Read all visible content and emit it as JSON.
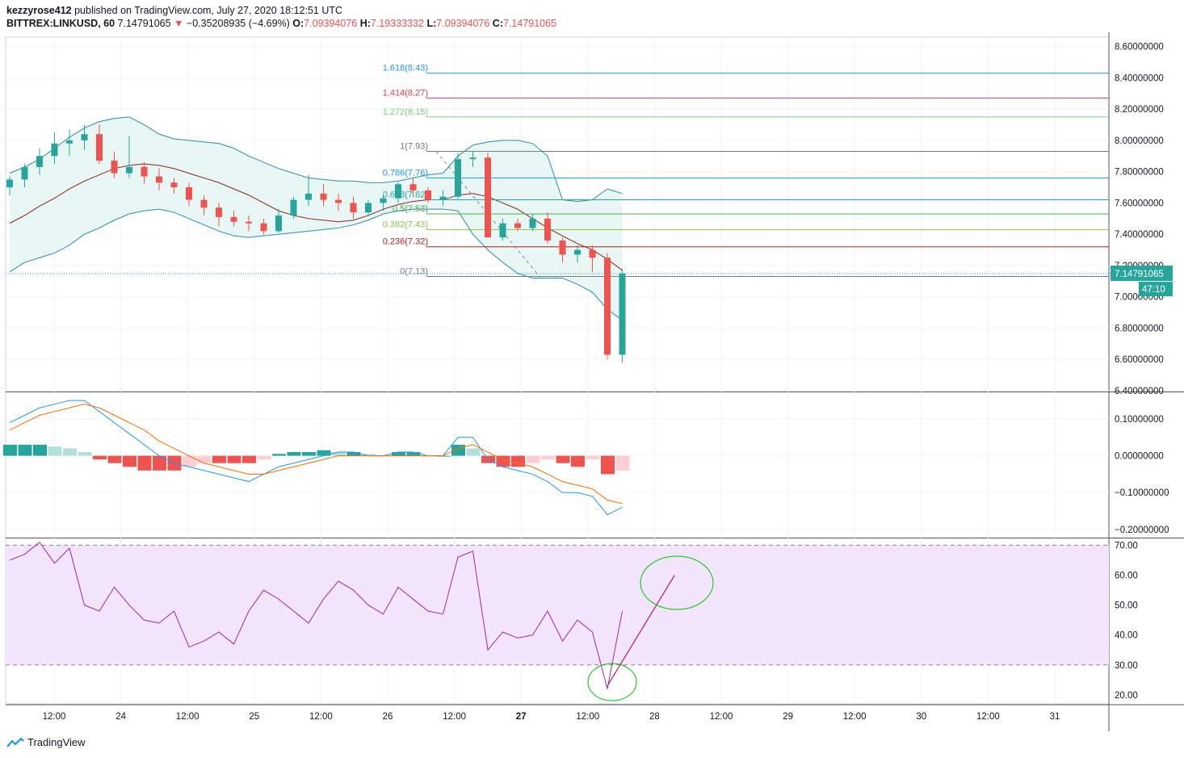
{
  "header": {
    "author": "kezzyrose412",
    "published_text": "published on TradingView.com, July 27, 2020 18:12:51 UTC",
    "symbol": "BITTREX:LINKUSD, 60",
    "last": "7.14791065",
    "down_arrow": "▼",
    "change": "−0.35208935 (−4.69%)",
    "o_label": "O:",
    "o_val": "7.09394076",
    "h_label": "H:",
    "h_val": "7.19333332",
    "l_label": "L:",
    "l_val": "7.09394076",
    "c_label": "C:",
    "c_val": "7.14791065"
  },
  "price_badge": "7.14791065",
  "countdown_badge": "47:10",
  "footer": {
    "brand": "TradingView",
    "logo_icon": "tradingview-logo-icon"
  },
  "colors": {
    "up": "#26a69a",
    "down": "#ef5350",
    "macd": "#2196f3",
    "signal": "#ff6d00",
    "rsi": "#9c27b0",
    "bb_fill": "#e8f6f4",
    "rsi_band": "#f3e5fc",
    "annotation": "#00c400",
    "trendline": "#b71c5a"
  },
  "chart_data": [
    {
      "type": "candlestick",
      "name": "price",
      "y_ticks": [
        "8.60000000",
        "8.40000000",
        "8.20000000",
        "8.00000000",
        "7.80000000",
        "7.60000000",
        "7.40000000",
        "7.20000000",
        "7.00000000",
        "6.80000000",
        "6.60000000",
        "6.40000000"
      ],
      "ylim": [
        6.4,
        8.66
      ],
      "x_ticks": [
        "12:00",
        "24",
        "12:00",
        "25",
        "12:00",
        "26",
        "12:00",
        "27",
        "12:00",
        "28",
        "12:00",
        "29",
        "12:00",
        "30",
        "12:00",
        "31"
      ],
      "fib_levels": [
        {
          "label": "1.618",
          "price": "8.43",
          "value": 8.43,
          "color": "#2196f3"
        },
        {
          "label": "1.414",
          "price": "8.27",
          "value": 8.27,
          "color": "#e53950"
        },
        {
          "label": "1.272",
          "price": "8.15",
          "value": 8.15,
          "color": "#81c784"
        },
        {
          "label": "1",
          "price": "7.93",
          "value": 7.93,
          "color": "#787b86"
        },
        {
          "label": "0.786",
          "price": "7.76",
          "value": 7.76,
          "color": "#2196f3"
        },
        {
          "label": "0.618",
          "price": "7.62",
          "value": 7.62,
          "color": "#26a69a"
        },
        {
          "label": "0.5",
          "price": "7.53",
          "value": 7.53,
          "color": "#4caf50"
        },
        {
          "label": "0.382",
          "price": "7.43",
          "value": 7.43,
          "color": "#8bc34a"
        },
        {
          "label": "0.236",
          "price": "7.32",
          "value": 7.32,
          "color": "#b71c1c"
        },
        {
          "label": "0",
          "price": "7.13",
          "value": 7.13,
          "color": "#787b86"
        }
      ],
      "bollinger": {
        "upper": [
          7.79,
          7.83,
          7.88,
          7.95,
          8.02,
          8.08,
          8.12,
          8.14,
          8.15,
          8.1,
          8.04,
          8.01,
          8.0,
          7.99,
          7.98,
          7.95,
          7.9,
          7.86,
          7.82,
          7.79,
          7.76,
          7.75,
          7.74,
          7.74,
          7.73,
          7.73,
          7.74,
          7.76,
          7.78,
          7.79,
          7.9,
          7.97,
          7.99,
          8.0,
          8.0,
          7.98,
          7.9,
          7.62,
          7.61,
          7.62,
          7.69,
          7.66
        ],
        "middle": [
          7.47,
          7.52,
          7.58,
          7.63,
          7.69,
          7.74,
          7.78,
          7.82,
          7.84,
          7.85,
          7.84,
          7.82,
          7.79,
          7.76,
          7.73,
          7.69,
          7.65,
          7.6,
          7.55,
          7.52,
          7.5,
          7.49,
          7.48,
          7.49,
          7.52,
          7.56,
          7.59,
          7.61,
          7.62,
          7.62,
          7.65,
          7.66,
          7.64,
          7.6,
          7.56,
          7.5,
          7.44,
          7.39,
          7.34,
          7.3,
          7.24,
          7.17
        ],
        "lower": [
          7.16,
          7.22,
          7.25,
          7.28,
          7.33,
          7.4,
          7.44,
          7.49,
          7.53,
          7.55,
          7.56,
          7.54,
          7.5,
          7.46,
          7.42,
          7.39,
          7.38,
          7.39,
          7.4,
          7.41,
          7.42,
          7.43,
          7.44,
          7.46,
          7.49,
          7.53,
          7.55,
          7.56,
          7.56,
          7.56,
          7.55,
          7.4,
          7.3,
          7.22,
          7.15,
          7.12,
          7.12,
          7.12,
          7.08,
          7.03,
          6.92,
          6.85
        ]
      },
      "candles": [
        [
          7.7,
          7.77,
          7.65,
          7.75
        ],
        [
          7.75,
          7.85,
          7.7,
          7.83
        ],
        [
          7.83,
          7.95,
          7.78,
          7.9
        ],
        [
          7.9,
          8.05,
          7.85,
          7.98
        ],
        [
          7.98,
          8.07,
          7.9,
          8.0
        ],
        [
          8.0,
          8.1,
          7.94,
          8.04
        ],
        [
          8.04,
          8.1,
          7.85,
          7.87
        ],
        [
          7.87,
          7.93,
          7.76,
          7.79
        ],
        [
          7.79,
          8.03,
          7.76,
          7.83
        ],
        [
          7.83,
          7.86,
          7.72,
          7.77
        ],
        [
          7.77,
          7.82,
          7.68,
          7.73
        ],
        [
          7.73,
          7.76,
          7.66,
          7.7
        ],
        [
          7.7,
          7.73,
          7.58,
          7.62
        ],
        [
          7.62,
          7.65,
          7.52,
          7.57
        ],
        [
          7.57,
          7.6,
          7.45,
          7.51
        ],
        [
          7.51,
          7.55,
          7.45,
          7.48
        ],
        [
          7.48,
          7.52,
          7.42,
          7.47
        ],
        [
          7.47,
          7.5,
          7.4,
          7.42
        ],
        [
          7.42,
          7.56,
          7.41,
          7.52
        ],
        [
          7.52,
          7.64,
          7.5,
          7.62
        ],
        [
          7.62,
          7.78,
          7.58,
          7.66
        ],
        [
          7.66,
          7.72,
          7.58,
          7.62
        ],
        [
          7.62,
          7.66,
          7.55,
          7.6
        ],
        [
          7.6,
          7.64,
          7.5,
          7.54
        ],
        [
          7.54,
          7.62,
          7.52,
          7.6
        ],
        [
          7.6,
          7.65,
          7.55,
          7.63
        ],
        [
          7.63,
          7.73,
          7.6,
          7.72
        ],
        [
          7.72,
          7.76,
          7.64,
          7.68
        ],
        [
          7.68,
          7.7,
          7.6,
          7.62
        ],
        [
          7.62,
          7.68,
          7.58,
          7.64
        ],
        [
          7.64,
          7.92,
          7.63,
          7.88
        ],
        [
          7.88,
          7.93,
          7.83,
          7.89
        ],
        [
          7.89,
          7.92,
          7.38,
          7.38
        ],
        [
          7.38,
          7.5,
          7.36,
          7.47
        ],
        [
          7.47,
          7.5,
          7.42,
          7.44
        ],
        [
          7.44,
          7.53,
          7.42,
          7.5
        ],
        [
          7.5,
          7.54,
          7.34,
          7.36
        ],
        [
          7.36,
          7.38,
          7.22,
          7.27
        ],
        [
          7.27,
          7.33,
          7.22,
          7.3
        ],
        [
          7.3,
          7.33,
          7.16,
          7.25
        ],
        [
          7.25,
          7.28,
          6.6,
          6.63
        ],
        [
          6.63,
          7.18,
          6.58,
          7.15
        ]
      ],
      "annotation": {
        "shape": "ellipse",
        "color": "green",
        "note": "hand-drawn circle around the low"
      }
    },
    {
      "type": "macd",
      "name": "MACD",
      "y_ticks": [
        "0.10000000",
        "0.00000000",
        "−0.10000000",
        "−0.20000000"
      ],
      "ylim": [
        -0.22,
        0.17
      ],
      "macd": [
        0.09,
        0.11,
        0.13,
        0.14,
        0.15,
        0.15,
        0.12,
        0.09,
        0.06,
        0.03,
        0.0,
        -0.02,
        -0.03,
        -0.04,
        -0.05,
        -0.06,
        -0.07,
        -0.05,
        -0.03,
        -0.02,
        -0.01,
        0.0,
        0.01,
        0.01,
        0.0,
        0.0,
        0.01,
        0.01,
        0.0,
        0.0,
        0.05,
        0.05,
        -0.01,
        -0.03,
        -0.04,
        -0.05,
        -0.07,
        -0.1,
        -0.1,
        -0.11,
        -0.16,
        -0.14
      ],
      "signal": [
        0.07,
        0.09,
        0.11,
        0.12,
        0.13,
        0.14,
        0.13,
        0.11,
        0.09,
        0.07,
        0.04,
        0.02,
        0.0,
        -0.02,
        -0.03,
        -0.04,
        -0.05,
        -0.05,
        -0.04,
        -0.03,
        -0.02,
        -0.01,
        0.0,
        0.0,
        0.0,
        0.0,
        0.0,
        0.0,
        0.0,
        0.0,
        0.02,
        0.03,
        0.01,
        -0.01,
        -0.02,
        -0.03,
        -0.05,
        -0.07,
        -0.08,
        -0.09,
        -0.12,
        -0.13
      ],
      "histogram": [
        0.03,
        0.03,
        0.03,
        0.025,
        0.02,
        0.01,
        -0.01,
        -0.02,
        -0.03,
        -0.04,
        -0.04,
        -0.04,
        -0.03,
        -0.02,
        -0.02,
        -0.02,
        -0.02,
        -0.01,
        0.005,
        0.01,
        0.01,
        0.015,
        0.01,
        0.01,
        0.005,
        0.0,
        0.01,
        0.01,
        0.0,
        0.0,
        0.03,
        0.02,
        -0.02,
        -0.03,
        -0.03,
        -0.02,
        -0.01,
        -0.02,
        -0.03,
        -0.01,
        -0.05,
        -0.04
      ]
    },
    {
      "type": "line",
      "name": "RSI",
      "y_ticks": [
        "70.00",
        "60.00",
        "50.00",
        "40.00",
        "30.00",
        "20.00"
      ],
      "ylim": [
        17,
        72
      ],
      "bands": [
        30,
        70
      ],
      "values": [
        65,
        67,
        71,
        64,
        69,
        50,
        48,
        56,
        50,
        45,
        44,
        48,
        36,
        38,
        41,
        37,
        48,
        55,
        52,
        48,
        44,
        52,
        58,
        55,
        50,
        47,
        56,
        52,
        48,
        47,
        66,
        68,
        35,
        41,
        39,
        40,
        48,
        38,
        45,
        41,
        22,
        48
      ],
      "trendline": {
        "from": [
          40,
          23
        ],
        "to": [
          44.5,
          60
        ]
      },
      "annotations": [
        {
          "shape": "ellipse",
          "color": "green",
          "at": "RSI low ~22"
        },
        {
          "shape": "ellipse",
          "color": "green",
          "at": "target ~60"
        }
      ]
    }
  ]
}
